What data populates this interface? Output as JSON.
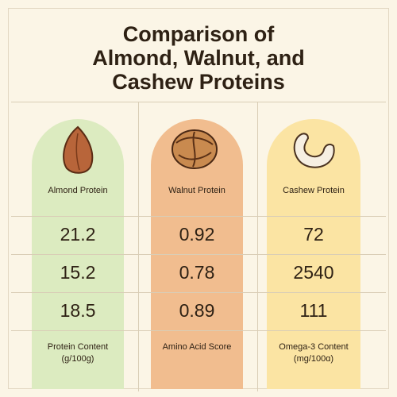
{
  "title_lines": [
    "Comparison of",
    "Almond, Walnut, and",
    "Cashew Proteins"
  ],
  "columns": [
    "Almond Protein",
    "Walnut Protein",
    "Cashew Protein"
  ],
  "rows": [
    [
      "21.2",
      "0.92",
      "72"
    ],
    [
      "15.2",
      "0.78",
      "2540"
    ],
    [
      "18.5",
      "0.89",
      "111"
    ]
  ],
  "row_labels": [
    [
      "Protein Content",
      "(g/100g)"
    ],
    [
      "Amino Acid Score"
    ],
    [
      "Omega-3 Content",
      "(mg/100ɑ)"
    ]
  ]
}
